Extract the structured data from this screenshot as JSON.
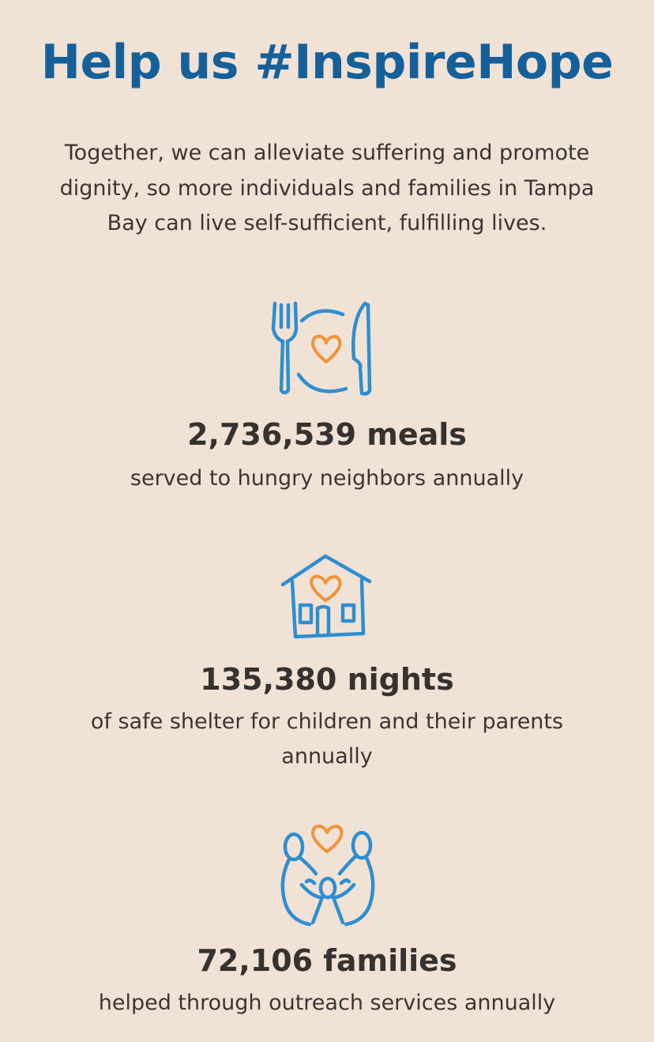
{
  "title": "Help us #InspireHope",
  "intro": "Together, we can alleviate suffering and promote dignity, so more individuals and families in Tampa Bay can live self-sufficient, fulfilling lives.",
  "colors": {
    "title": "#16609a",
    "icon_blue": "#2e8fd0",
    "icon_heart": "#f0943a",
    "background": "#f1e2d6"
  },
  "stats": [
    {
      "icon": "plate-fork-knife-heart-icon",
      "value": "2,736,539 meals",
      "description": "served to hungry neighbors annually"
    },
    {
      "icon": "house-heart-icon",
      "value": "135,380 nights",
      "description": "of safe shelter for children and their parents annually"
    },
    {
      "icon": "family-heart-icon",
      "value": "72,106 families",
      "description": "helped through outreach services annually"
    }
  ]
}
